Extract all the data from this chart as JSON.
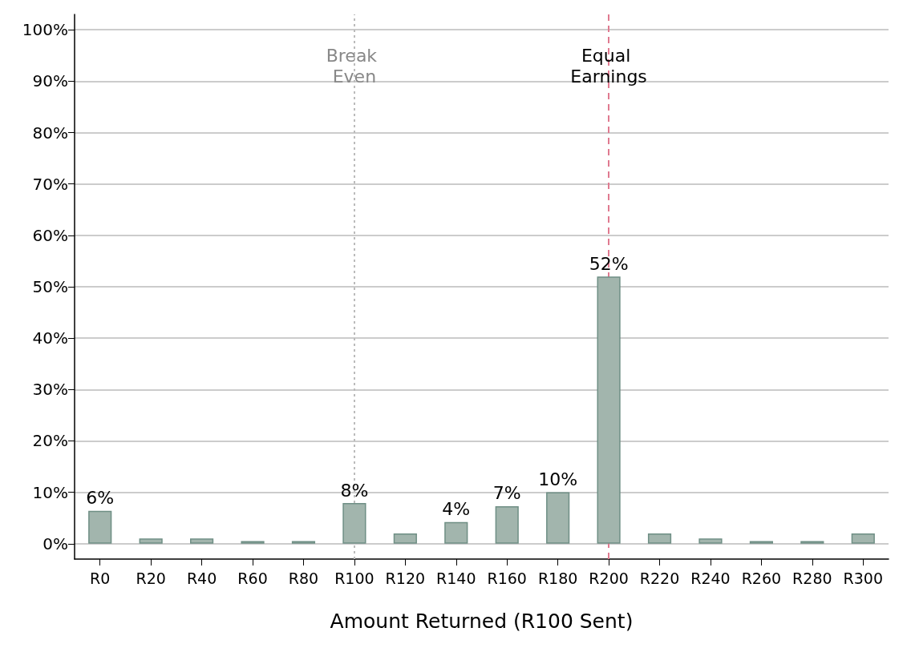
{
  "chart_data": {
    "type": "bar",
    "xlabel": "Amount Returned (R100 Sent)",
    "categories": [
      "R0",
      "R20",
      "R40",
      "R60",
      "R80",
      "R100",
      "R120",
      "R140",
      "R160",
      "R180",
      "R200",
      "R220",
      "R240",
      "R260",
      "R280",
      "R300"
    ],
    "values": [
      6.4,
      1,
      1,
      0.5,
      0.5,
      7.9,
      2,
      4.2,
      7.3,
      10,
      52,
      2,
      1,
      0.5,
      0.5,
      2
    ],
    "value_labels": [
      "6%",
      null,
      null,
      null,
      null,
      "8%",
      null,
      "4%",
      "7%",
      "10%",
      "52%",
      null,
      null,
      null,
      null,
      null
    ],
    "color": "#a2b5ad",
    "ylim": [
      -3,
      103
    ],
    "yticks": [
      {
        "value": 0,
        "label": "0%"
      },
      {
        "value": 10,
        "label": "10%"
      },
      {
        "value": 20,
        "label": "20%"
      },
      {
        "value": 30,
        "label": "30%"
      },
      {
        "value": 40,
        "label": "40%"
      },
      {
        "value": 50,
        "label": "50%"
      },
      {
        "value": 60,
        "label": "60%"
      },
      {
        "value": 70,
        "label": "70%"
      },
      {
        "value": 80,
        "label": "80%"
      },
      {
        "value": 90,
        "label": "90%"
      },
      {
        "value": 100,
        "label": "100%"
      }
    ],
    "grid": "y",
    "ref_lines": [
      {
        "axis": "x",
        "value": "R100",
        "label": "Break Even",
        "color": "#bbbbbb",
        "line_style": "dotted"
      },
      {
        "axis": "x",
        "value": "R200",
        "label": "Equal Earnings",
        "color": "#e07a90",
        "line_style": "dashed"
      }
    ]
  }
}
